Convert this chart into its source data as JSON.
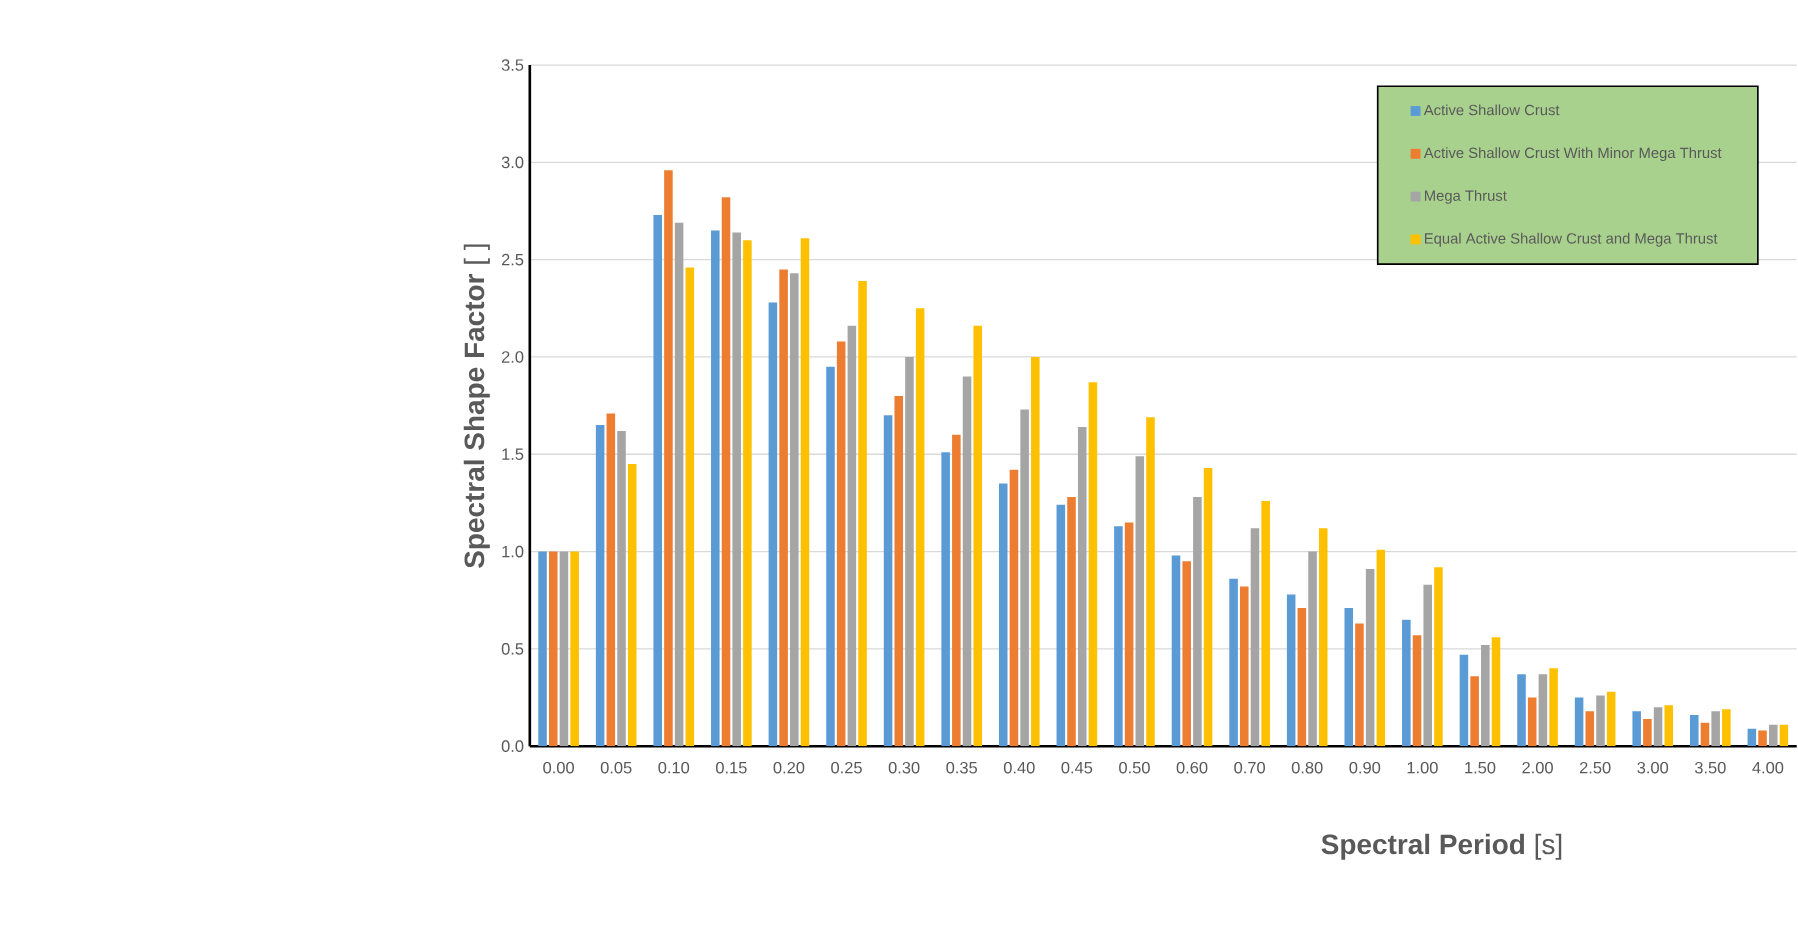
{
  "chart_data": {
    "type": "bar",
    "xlabel": "**Spectral Period** [s]",
    "ylabel": "**Spectral Shape Factor** [ ]",
    "categories": [
      "0.00",
      "0.05",
      "0.10",
      "0.15",
      "0.20",
      "0.25",
      "0.30",
      "0.35",
      "0.40",
      "0.45",
      "0.50",
      "0.60",
      "0.70",
      "0.80",
      "0.90",
      "1.00",
      "1.50",
      "2.00",
      "2.50",
      "3.00",
      "3.50",
      "4.00"
    ],
    "series": [
      {
        "name": "Active Shallow Crust",
        "color": "#5b9bd5",
        "values": [
          1.0,
          1.65,
          2.73,
          2.65,
          2.28,
          1.95,
          1.7,
          1.51,
          1.35,
          1.24,
          1.13,
          0.98,
          0.86,
          0.78,
          0.71,
          0.65,
          0.47,
          0.37,
          0.25,
          0.18,
          0.16,
          0.09
        ]
      },
      {
        "name": "Active Shallow Crust With Minor Mega Thrust",
        "color": "#ed7d31",
        "values": [
          1.0,
          1.71,
          2.96,
          2.82,
          2.45,
          2.08,
          1.8,
          1.6,
          1.42,
          1.28,
          1.15,
          0.95,
          0.82,
          0.71,
          0.63,
          0.57,
          0.36,
          0.25,
          0.18,
          0.14,
          0.12,
          0.08
        ]
      },
      {
        "name": "Mega Thrust",
        "color": "#a5a5a5",
        "values": [
          1.0,
          1.62,
          2.69,
          2.64,
          2.43,
          2.16,
          2.0,
          1.9,
          1.73,
          1.64,
          1.49,
          1.28,
          1.12,
          1.0,
          0.91,
          0.83,
          0.52,
          0.37,
          0.26,
          0.2,
          0.18,
          0.11
        ]
      },
      {
        "name": "Equal Active Shallow Crust and Mega Thrust",
        "color": "#ffc000",
        "values": [
          1.0,
          1.45,
          2.46,
          2.6,
          2.61,
          2.39,
          2.25,
          2.16,
          2.0,
          1.87,
          1.69,
          1.43,
          1.26,
          1.12,
          1.01,
          0.92,
          0.56,
          0.4,
          0.28,
          0.21,
          0.19,
          0.11
        ]
      }
    ],
    "ylim": [
      0,
      3.5
    ],
    "yticks": [
      {
        "value": 0,
        "label": "0.0"
      },
      {
        "value": 0.5,
        "label": "0.5"
      },
      {
        "value": 1,
        "label": "1.0"
      },
      {
        "value": 1.5,
        "label": "1.5"
      },
      {
        "value": 2,
        "label": "2.0"
      },
      {
        "value": 2.5,
        "label": "2.5"
      },
      {
        "value": 3,
        "label": "3.0"
      },
      {
        "value": 3.5,
        "label": "3.5"
      }
    ],
    "grid": "y",
    "legend": "top right"
  }
}
